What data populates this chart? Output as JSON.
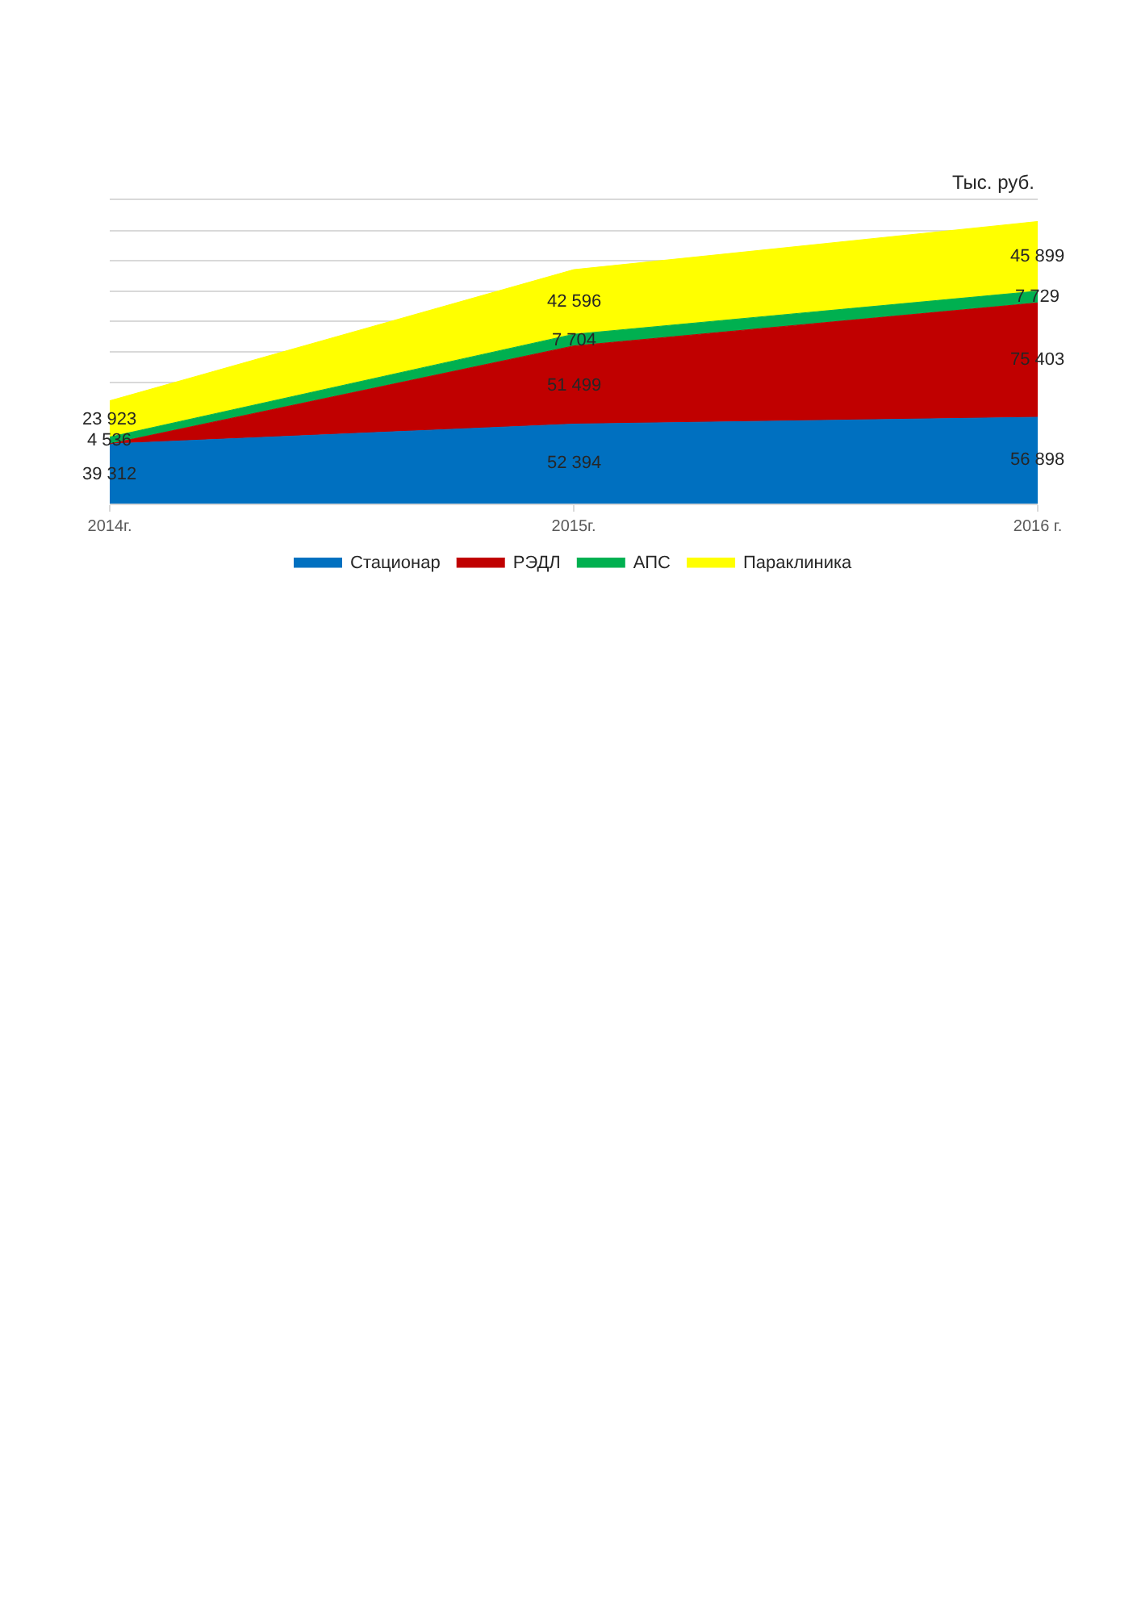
{
  "chart_data": {
    "type": "area",
    "stacked": true,
    "categories": [
      "2014г.",
      "2015г.",
      "2016 г."
    ],
    "series": [
      {
        "name": "Стационар",
        "color": "#0070c0",
        "values": [
          39312,
          52394,
          56898
        ],
        "value_labels": [
          "39 312",
          "52 394",
          "56 898"
        ]
      },
      {
        "name": "РЭДЛ",
        "color": "#c00000",
        "values": [
          0,
          51499,
          75403
        ],
        "value_labels": [
          null,
          "51 499",
          "75 403"
        ]
      },
      {
        "name": "АПС",
        "color": "#00b050",
        "values": [
          4536,
          7704,
          7729
        ],
        "value_labels": [
          "4 536",
          "7 704",
          "7 729"
        ]
      },
      {
        "name": "Параклиника",
        "color": "#ffff00",
        "values": [
          23923,
          42596,
          45899
        ],
        "value_labels": [
          "23 923",
          "42 596",
          "45 899"
        ]
      }
    ],
    "ylim": [
      0,
      200000
    ],
    "yticks": [
      {
        "value": 0,
        "label": null
      },
      {
        "value": 80000,
        "label": null
      },
      {
        "value": 100000,
        "label": null
      },
      {
        "value": 120000,
        "label": null
      },
      {
        "value": 140000,
        "label": null
      },
      {
        "value": 160000,
        "label": null
      },
      {
        "value": 180000,
        "label": null
      },
      {
        "value": 200000,
        "label": null
      }
    ],
    "tick_labels": "x",
    "grid": "y",
    "legend": "bottom",
    "annotations": [
      "Тыс. руб."
    ]
  }
}
